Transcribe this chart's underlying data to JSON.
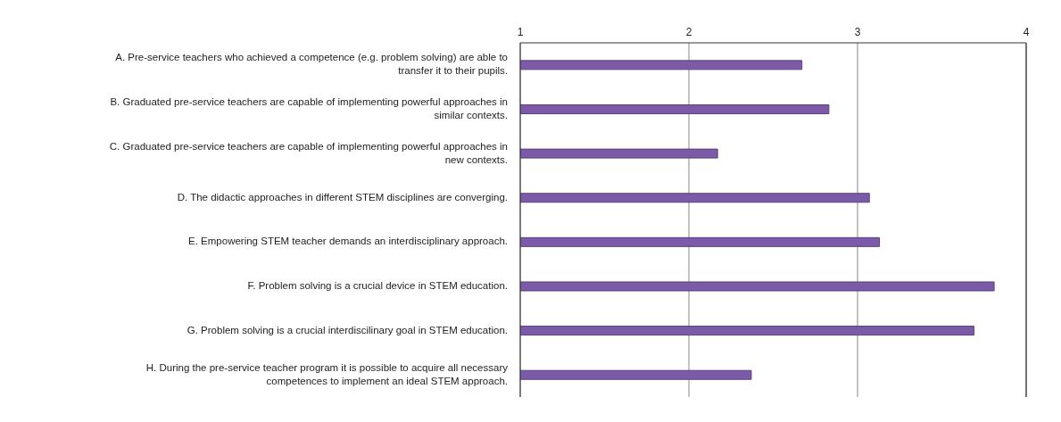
{
  "chart_data": {
    "type": "bar",
    "orientation": "horizontal",
    "categories": [
      "A. Pre-service teachers who achieved a competence (e.g. problem solving) are able to transfer it to their pupils.",
      "B. Graduated pre-service teachers are capable of implementing powerful approaches in similar contexts.",
      "C. Graduated pre-service teachers are capable of implementing powerful approaches in new contexts.",
      "D. The didactic approaches in different STEM disciplines are converging.",
      "E. Empowering STEM teacher demands an interdisciplinary approach.",
      "F. Problem solving is a crucial device in STEM education.",
      "G. Problem solving is a crucial interdiscilinary goal in STEM education.",
      "H. During the pre-service teacher program it is possible to acquire  all necessary competences to implement an ideal STEM approach."
    ],
    "values": [
      2.67,
      2.83,
      2.17,
      3.07,
      3.13,
      3.81,
      3.69,
      2.37
    ],
    "color": "#7b5aa8",
    "xlim": [
      1,
      4
    ],
    "xticks": [
      1,
      2,
      3,
      4
    ],
    "grid": "x"
  }
}
